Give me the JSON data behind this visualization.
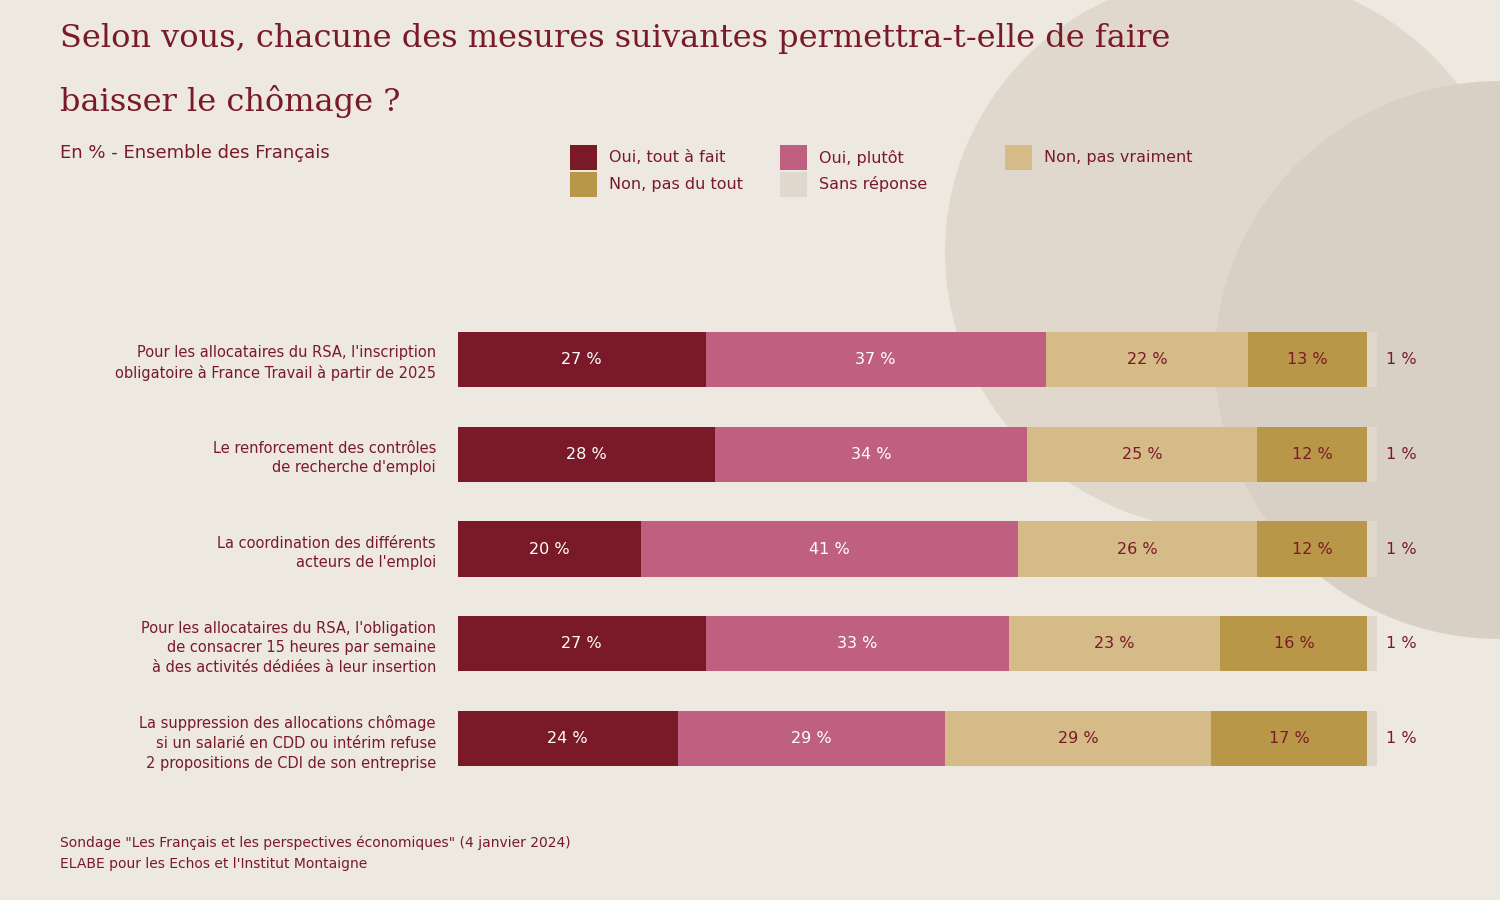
{
  "title_line1": "Selon vous, chacune des mesures suivantes permettra-t-elle de faire",
  "title_line2": "baisser le chômage ?",
  "subtitle": "En % - Ensemble des Français",
  "footnote_line1": "Sondage \"Les Français et les perspectives économiques\" (4 janvier 2024)",
  "footnote_line2": "ELABE pour les Echos et l'Institut Montaigne",
  "background_color": "#ede8e0",
  "title_color": "#7a1a28",
  "text_color": "#7a1a28",
  "bar_text_color_dark": "#7a1a28",
  "categories": [
    "Pour les allocataires du RSA, l'inscription\nobligatoire à France Travail à partir de 2025",
    "Le renforcement des contrôles\nde recherche d'emploi",
    "La coordination des différents\nacteurs de l'emploi",
    "Pour les allocataires du RSA, l'obligation\nde consacrer 15 heures par semaine\nà des activités dédiées à leur insertion",
    "La suppression des allocations chômage\nsi un salarié en CDD ou intérim refuse\n2 propositions de CDI de son entreprise"
  ],
  "series": [
    {
      "label": "Oui, tout à fait",
      "color": "#7a1a28",
      "values": [
        27,
        28,
        20,
        27,
        24
      ]
    },
    {
      "label": "Oui, plutôt",
      "color": "#c06080",
      "values": [
        37,
        34,
        41,
        33,
        29
      ]
    },
    {
      "label": "Non, pas vraiment",
      "color": "#d4bb88",
      "values": [
        22,
        25,
        26,
        23,
        29
      ]
    },
    {
      "label": "Non, pas du tout",
      "color": "#b89848",
      "values": [
        13,
        12,
        12,
        16,
        17
      ]
    },
    {
      "label": "Sans réponse",
      "color": "#e0d8cc",
      "values": [
        1,
        1,
        1,
        1,
        1
      ]
    }
  ],
  "circle1_color": "#e0d8cc",
  "circle2_color": "#d8d0c4",
  "last_val_color": "#7a1a28",
  "bar_height": 0.58,
  "figsize": [
    15,
    9
  ],
  "dpi": 100
}
